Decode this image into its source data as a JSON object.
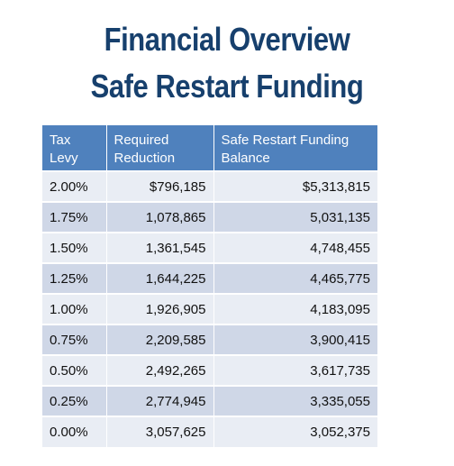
{
  "title": {
    "line1": "Financial Overview",
    "line2": "Safe Restart Funding"
  },
  "table": {
    "headers": {
      "col1_line1": "Tax",
      "col1_line2": "Levy",
      "col2_line1": "Required",
      "col2_line2": "Reduction",
      "col3_line1": "Safe Restart Funding",
      "col3_line2": "Balance"
    },
    "rows": [
      {
        "levy": "2.00%",
        "reduction": "$796,185",
        "balance": "$5,313,815"
      },
      {
        "levy": "1.75%",
        "reduction": "1,078,865",
        "balance": "5,031,135"
      },
      {
        "levy": "1.50%",
        "reduction": "1,361,545",
        "balance": "4,748,455"
      },
      {
        "levy": "1.25%",
        "reduction": "1,644,225",
        "balance": "4,465,775"
      },
      {
        "levy": "1.00%",
        "reduction": "1,926,905",
        "balance": "4,183,095"
      },
      {
        "levy": "0.75%",
        "reduction": "2,209,585",
        "balance": "3,900,415"
      },
      {
        "levy": "0.50%",
        "reduction": "2,492,265",
        "balance": "3,617,735"
      },
      {
        "levy": "0.25%",
        "reduction": "2,774,945",
        "balance": "3,335,055"
      },
      {
        "levy": "0.00%",
        "reduction": "3,057,625",
        "balance": "3,052,375"
      }
    ]
  },
  "colors": {
    "title": "#17406d",
    "header_bg": "#4f81bd",
    "row_light": "#e9edf4",
    "row_dark": "#cfd7e7"
  }
}
